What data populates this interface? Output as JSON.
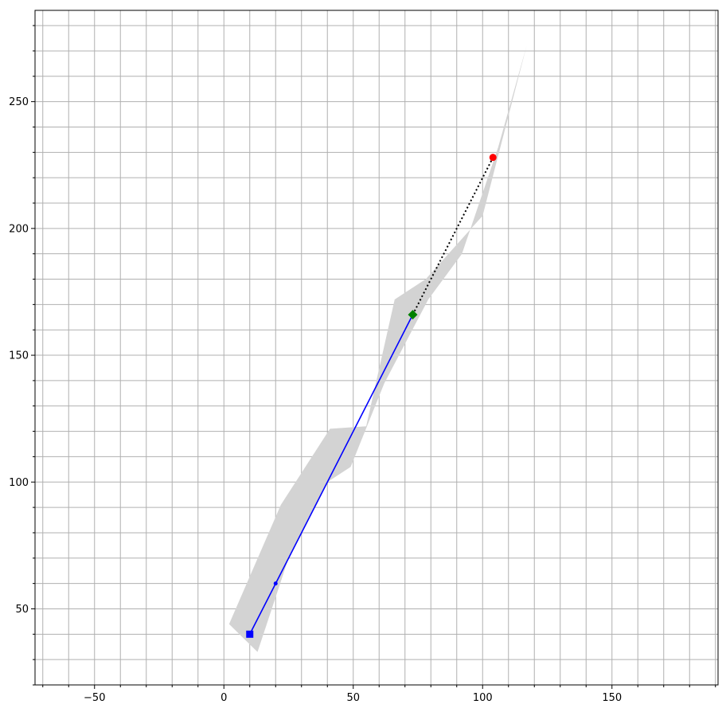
{
  "chart_data": {
    "type": "line",
    "title": "",
    "xlabel": "",
    "ylabel": "",
    "xlim": [
      -73,
      191
    ],
    "ylim": [
      20,
      286
    ],
    "x_ticks": [
      -50,
      0,
      50,
      100,
      150
    ],
    "x_tick_labels": [
      "−50",
      "0",
      "50",
      "100",
      "150"
    ],
    "y_ticks": [
      50,
      100,
      150,
      200,
      250
    ],
    "y_tick_labels": [
      "50",
      "100",
      "150",
      "200",
      "250"
    ],
    "grid": true,
    "minor_grid_step": 10,
    "shaded_region": {
      "color": "#d3d3d3",
      "polygon": [
        [
          2,
          44
        ],
        [
          22,
          91
        ],
        [
          41,
          121
        ],
        [
          55,
          122
        ],
        [
          66,
          172
        ],
        [
          78,
          180
        ],
        [
          100,
          205
        ],
        [
          117,
          272
        ],
        [
          106,
          232
        ],
        [
          92,
          190
        ],
        [
          79,
          172
        ],
        [
          62,
          139
        ],
        [
          49,
          106
        ],
        [
          40,
          100
        ],
        [
          25,
          70
        ],
        [
          13,
          33
        ]
      ]
    },
    "series": [
      {
        "style": "solid",
        "color": "#0000ff",
        "x": [
          10,
          20,
          73
        ],
        "y": [
          40,
          60,
          166
        ]
      },
      {
        "style": "dotted",
        "color": "#000000",
        "x": [
          73,
          104
        ],
        "y": [
          166,
          228
        ]
      }
    ],
    "markers": [
      {
        "shape": "square",
        "color": "#0000ff",
        "x": 10,
        "y": 40
      },
      {
        "shape": "small-dot",
        "color": "#0000ff",
        "x": 20,
        "y": 60
      },
      {
        "shape": "diamond",
        "color": "#008000",
        "x": 73,
        "y": 166
      },
      {
        "shape": "circle",
        "color": "#ff0000",
        "x": 104,
        "y": 228
      }
    ]
  }
}
